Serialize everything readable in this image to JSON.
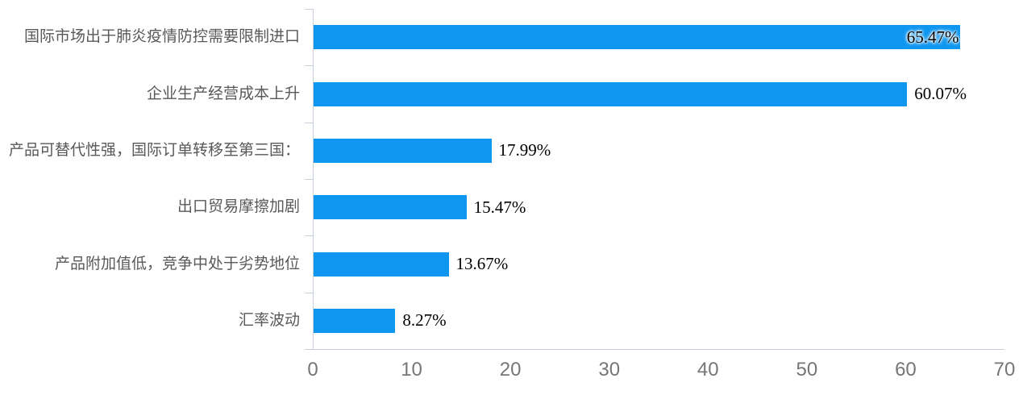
{
  "chart_data": {
    "type": "bar",
    "orientation": "horizontal",
    "title": "",
    "xlabel": "",
    "ylabel": "",
    "categories": [
      "国际市场出于肺炎疫情防控需要限制进口",
      "企业生产经营成本上升",
      "产品可替代性强，国际订单转移至第三国：",
      "出口贸易摩擦加剧",
      "产品附加值低，竞争中处于劣势地位",
      "汇率波动"
    ],
    "values": [
      65.47,
      60.07,
      17.99,
      15.47,
      13.67,
      8.27
    ],
    "value_labels": [
      "65.47%",
      "60.07%",
      "17.99%",
      "15.47%",
      "13.67%",
      "8.27%"
    ],
    "xlim": [
      0,
      70
    ],
    "x_ticks": [
      "0",
      "10",
      "20",
      "30",
      "40",
      "50",
      "60",
      "70"
    ],
    "grid": false,
    "legend": null,
    "colors": {
      "bar": "#0e96f0",
      "axis": "#c7d0da",
      "category_label": "#595959",
      "tick_label": "#767676",
      "value_label": "#000000",
      "background": "#ffffff"
    }
  }
}
